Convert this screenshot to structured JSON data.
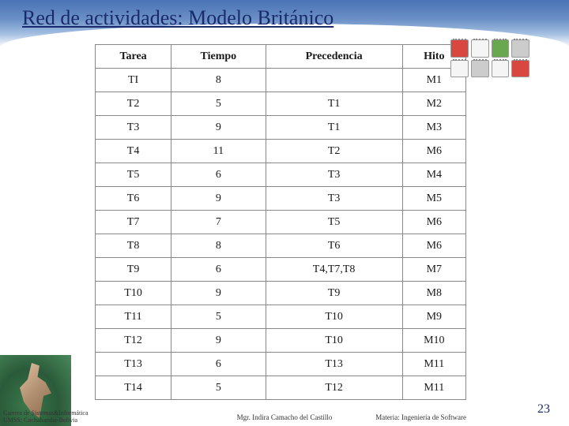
{
  "title": "Red de actividades: Modelo Británico",
  "table": {
    "columns": [
      "Tarea",
      "Tiempo",
      "Precedencia",
      "Hito"
    ],
    "rows": [
      [
        "TI",
        "8",
        "",
        "M1"
      ],
      [
        "T2",
        "5",
        "T1",
        "M2"
      ],
      [
        "T3",
        "9",
        "T1",
        "M3"
      ],
      [
        "T4",
        "11",
        "T2",
        "M6"
      ],
      [
        "T5",
        "6",
        "T3",
        "M4"
      ],
      [
        "T6",
        "9",
        "T3",
        "M5"
      ],
      [
        "T7",
        "7",
        "T5",
        "M6"
      ],
      [
        "T8",
        "8",
        "T6",
        "M6"
      ],
      [
        "T9",
        "6",
        "T4,T7,T8",
        "M7"
      ],
      [
        "T10",
        "9",
        "T9",
        "M8"
      ],
      [
        "T11",
        "5",
        "T10",
        "M9"
      ],
      [
        "T12",
        "9",
        "T10",
        "M10"
      ],
      [
        "T13",
        "6",
        "T13",
        "M11"
      ],
      [
        "T14",
        "5",
        "T12",
        "M11"
      ]
    ],
    "border_color": "#888888",
    "text_color": "#1a1a1a",
    "header_fontweight": "bold",
    "cell_fontsize": 14
  },
  "styling": {
    "title_color": "#1a2a6c",
    "title_fontsize": 26,
    "background_color": "#ffffff",
    "wave_gradient": [
      "#4a73b5",
      "#6a8fc5",
      "#a0bce0",
      "#ffffff"
    ]
  },
  "calendar": {
    "months": [
      "",
      "",
      "",
      "",
      "",
      "",
      "",
      ""
    ]
  },
  "footer": {
    "left_line1": "Carrera de Sistemas&Informática",
    "left_line2": "UMSS: Cochabamba-Bolivia",
    "center": "Mgr. Indira Camacho del Castillo",
    "right": "Materia: Ingeniería de Software",
    "page": "23"
  }
}
